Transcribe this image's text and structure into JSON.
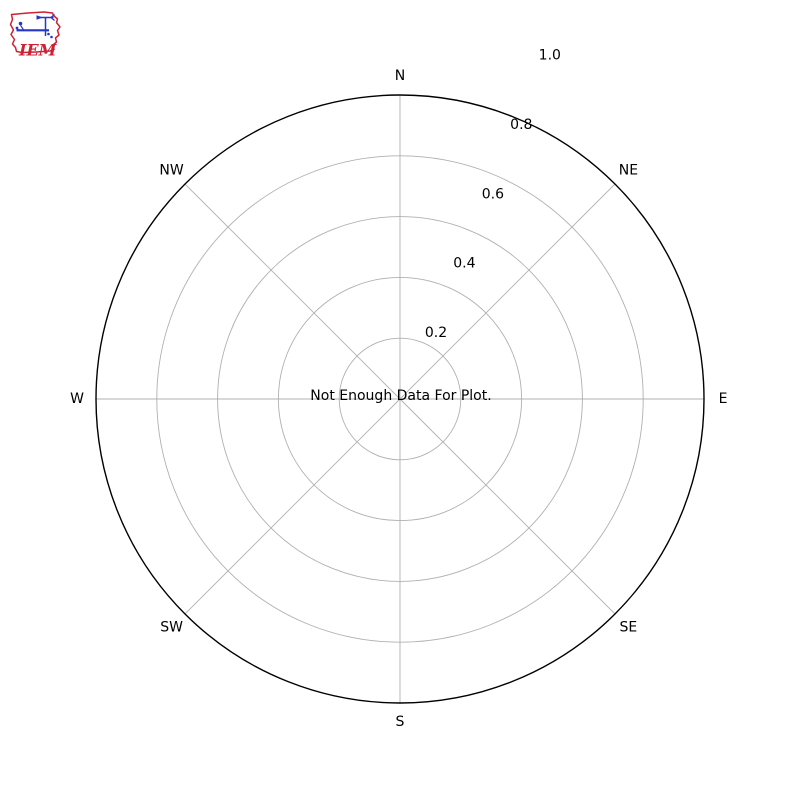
{
  "page": {
    "background": "#ffffff"
  },
  "logo": {
    "text": "IEM",
    "outline_color": "#cc2233",
    "instrument_color": "#2636c4"
  },
  "chart_data": {
    "type": "polar",
    "subtype": "windrose",
    "title": "",
    "message": "Not Enough Data For Plot.",
    "series": [],
    "direction_labels": [
      "N",
      "NE",
      "E",
      "SE",
      "S",
      "SW",
      "W",
      "NW"
    ],
    "direction_angles_deg": [
      0,
      45,
      90,
      135,
      180,
      225,
      270,
      315
    ],
    "radial_ticks": [
      {
        "label": "0.2",
        "value": 0.2
      },
      {
        "label": "0.4",
        "value": 0.4
      },
      {
        "label": "0.6",
        "value": 0.6
      },
      {
        "label": "0.8",
        "value": 0.8
      },
      {
        "label": "1.0",
        "value": 1.0
      }
    ],
    "r_range": [
      0,
      1.0
    ],
    "grid": true,
    "legend": "none",
    "colors": {
      "grid": "#b0b0b0",
      "spine": "#000000",
      "text": "#000000",
      "background": "#ffffff"
    }
  }
}
